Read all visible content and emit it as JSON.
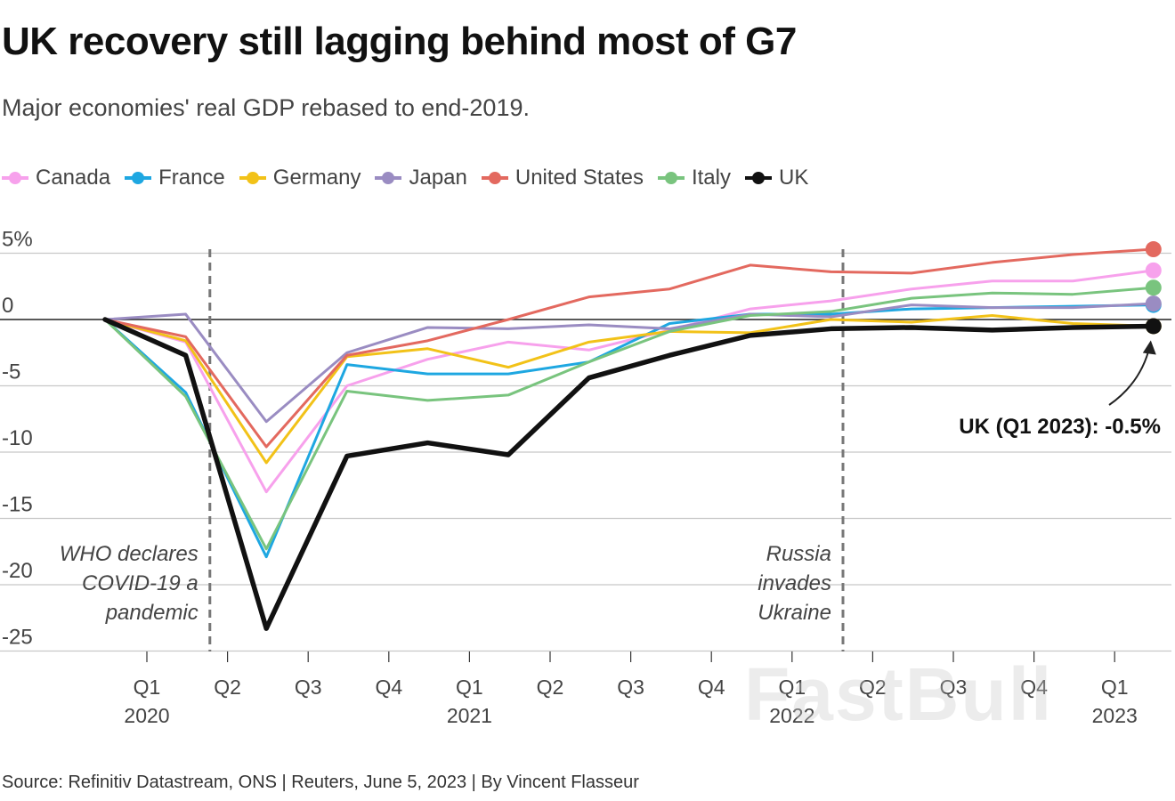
{
  "chart_data": {
    "type": "line",
    "title": "UK recovery still lagging behind most of G7",
    "subtitle": "Major economies' real GDP rebased to end-2019.",
    "xlabel": "",
    "ylabel": "",
    "ylim": [
      -25,
      5
    ],
    "y_ticks": [
      {
        "value": 5,
        "label": "5%"
      },
      {
        "value": 0,
        "label": "0"
      },
      {
        "value": -5,
        "label": "-5"
      },
      {
        "value": -10,
        "label": "-10"
      },
      {
        "value": -15,
        "label": "-15"
      },
      {
        "value": -20,
        "label": "-20"
      },
      {
        "value": -25,
        "label": "-25"
      }
    ],
    "x_ticks": [
      {
        "q": "Q1",
        "year": "2020"
      },
      {
        "q": "Q2",
        "year": ""
      },
      {
        "q": "Q3",
        "year": ""
      },
      {
        "q": "Q4",
        "year": ""
      },
      {
        "q": "Q1",
        "year": "2021"
      },
      {
        "q": "Q2",
        "year": ""
      },
      {
        "q": "Q3",
        "year": ""
      },
      {
        "q": "Q4",
        "year": ""
      },
      {
        "q": "Q1",
        "year": "2022"
      },
      {
        "q": "Q2",
        "year": ""
      },
      {
        "q": "Q3",
        "year": ""
      },
      {
        "q": "Q4",
        "year": ""
      },
      {
        "q": "Q1",
        "year": "2023"
      }
    ],
    "x": [
      0,
      1,
      2,
      3,
      4,
      5,
      6,
      7,
      8,
      9,
      10,
      11,
      12,
      13
    ],
    "x_meaning": "quarter index, 0 = end-2019, 13 = Q1 2023",
    "series": [
      {
        "name": "Canada",
        "color": "#f7a1ec",
        "width": 3,
        "values": [
          0,
          -1.7,
          -13,
          -5.0,
          -3.0,
          -1.7,
          -2.3,
          -0.8,
          0.8,
          1.4,
          2.3,
          2.9,
          2.9,
          3.7
        ]
      },
      {
        "name": "France",
        "color": "#1ea7e1",
        "width": 3,
        "values": [
          0,
          -5.5,
          -17.9,
          -3.4,
          -4.1,
          -4.1,
          -3.2,
          -0.3,
          0.4,
          0.4,
          0.8,
          0.9,
          1.0,
          1.1
        ]
      },
      {
        "name": "Germany",
        "color": "#f2c218",
        "width": 3,
        "values": [
          0,
          -1.6,
          -10.8,
          -2.8,
          -2.2,
          -3.6,
          -1.7,
          -0.9,
          -1.0,
          0.0,
          -0.2,
          0.3,
          -0.3,
          -0.5
        ]
      },
      {
        "name": "Japan",
        "color": "#9a8cc2",
        "width": 3,
        "values": [
          0,
          0.4,
          -7.7,
          -2.5,
          -0.6,
          -0.7,
          -0.4,
          -0.7,
          0.4,
          0.2,
          1.1,
          0.9,
          0.9,
          1.2
        ]
      },
      {
        "name": "United States",
        "color": "#e3695f",
        "width": 3,
        "values": [
          0,
          -1.3,
          -9.6,
          -2.7,
          -1.6,
          0.0,
          1.7,
          2.3,
          4.1,
          3.6,
          3.5,
          4.3,
          4.9,
          5.3
        ]
      },
      {
        "name": "Italy",
        "color": "#79c47e",
        "width": 3,
        "values": [
          0,
          -5.8,
          -17.3,
          -5.4,
          -6.1,
          -5.7,
          -3.2,
          -0.9,
          0.3,
          0.6,
          1.6,
          2.0,
          1.9,
          2.4
        ]
      },
      {
        "name": "UK",
        "color": "#111111",
        "width": 5.5,
        "values": [
          0,
          -2.7,
          -23.3,
          -10.3,
          -9.3,
          -10.2,
          -4.4,
          -2.7,
          -1.2,
          -0.7,
          -0.6,
          -0.8,
          -0.6,
          -0.5
        ]
      }
    ],
    "events": [
      {
        "x": 1.3,
        "lines": [
          "WHO declares",
          "COVID-19 a",
          "pandemic"
        ]
      },
      {
        "x": 9.15,
        "lines": [
          "Russia",
          "invades",
          "Ukraine"
        ]
      }
    ],
    "annotation": {
      "series": "UK",
      "x": 13,
      "text": "UK (Q1 2023): -0.5%"
    }
  },
  "source": "Source: Refinitiv Datastream, ONS | Reuters, June 5, 2023 | By Vincent Flasseur",
  "watermark": "FastBull"
}
